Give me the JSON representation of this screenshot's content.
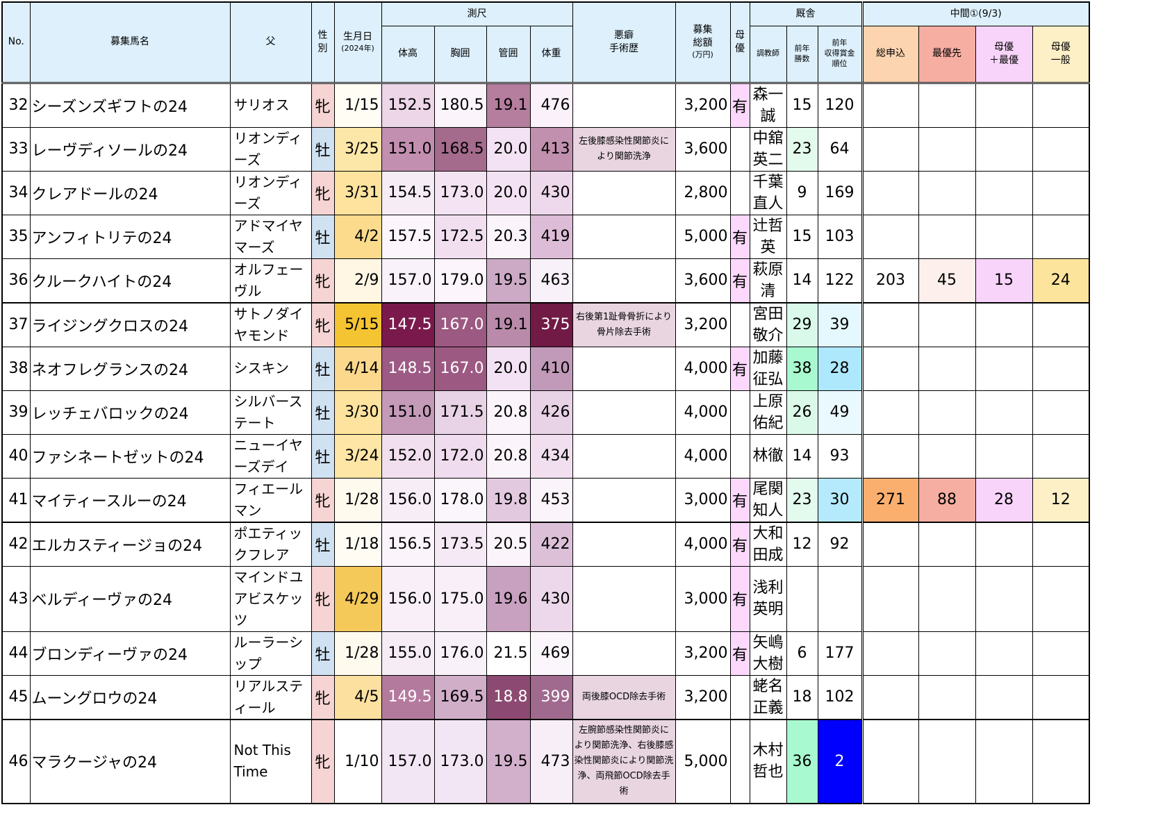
{
  "headers": {
    "no": "No.",
    "name": "募集馬名",
    "sire": "父",
    "sex": [
      "性",
      "別"
    ],
    "birth": "生月日",
    "birth_sub": "(2024年)",
    "measure_group": "測尺",
    "height": "体高",
    "chest": "胸囲",
    "cannon": "管囲",
    "weight": "体重",
    "vice": [
      "悪癖",
      "手術歴"
    ],
    "price": [
      "募集",
      "総額"
    ],
    "price_unit": "(万円)",
    "mother": [
      "母",
      "優"
    ],
    "stable_group": "厩舎",
    "trainer": "調教師",
    "wins": [
      "前年",
      "勝数"
    ],
    "rank": [
      "前年",
      "収得賞金",
      "順位"
    ],
    "interim_group": "中間①(9/3)",
    "total": "総申込",
    "priority": "最優先",
    "mother_priority": [
      "母優",
      "＋最優"
    ],
    "mother_general": [
      "母優",
      "一般"
    ]
  },
  "rows": [
    {
      "no": "32",
      "name": "シーズンズギフトの24",
      "sire": "サリオス",
      "sex": "牝",
      "birth": "1/15",
      "height": "152.5",
      "chest": "180.5",
      "cannon": "19.1",
      "weight": "476",
      "note": "",
      "price": "3,200",
      "mother": "有",
      "trainer": "森一誠",
      "wins": "15",
      "rank": "120",
      "total": "",
      "priority": "",
      "mother_priority": "",
      "mother_general": ""
    },
    {
      "no": "33",
      "name": "レーヴディソールの24",
      "sire": "リオンディーズ",
      "sex": "牡",
      "birth": "3/25",
      "height": "151.0",
      "chest": "168.5",
      "cannon": "20.0",
      "weight": "413",
      "note": "左後膝感染性関節炎により関節洗浄",
      "price": "3,600",
      "mother": "",
      "trainer": "中舘英二",
      "wins": "23",
      "rank": "64",
      "total": "",
      "priority": "",
      "mother_priority": "",
      "mother_general": ""
    },
    {
      "no": "34",
      "name": "クレアドールの24",
      "sire": "リオンディーズ",
      "sex": "牝",
      "birth": "3/31",
      "height": "154.5",
      "chest": "173.0",
      "cannon": "20.0",
      "weight": "430",
      "note": "",
      "price": "2,800",
      "mother": "",
      "trainer": "千葉直人",
      "wins": "9",
      "rank": "169",
      "total": "",
      "priority": "",
      "mother_priority": "",
      "mother_general": ""
    },
    {
      "no": "35",
      "name": "アンフィトリテの24",
      "sire": "アドマイヤマーズ",
      "sex": "牡",
      "birth": "4/2",
      "height": "157.5",
      "chest": "172.5",
      "cannon": "20.3",
      "weight": "419",
      "note": "",
      "price": "5,000",
      "mother": "有",
      "trainer": "辻哲英",
      "wins": "15",
      "rank": "103",
      "total": "",
      "priority": "",
      "mother_priority": "",
      "mother_general": ""
    },
    {
      "no": "36",
      "name": "クルークハイトの24",
      "sire": "オルフェーヴル",
      "sex": "牝",
      "birth": "2/9",
      "height": "157.0",
      "chest": "179.0",
      "cannon": "19.5",
      "weight": "463",
      "note": "",
      "price": "3,600",
      "mother": "有",
      "trainer": "萩原清",
      "wins": "14",
      "rank": "122",
      "total": "203",
      "priority": "45",
      "mother_priority": "15",
      "mother_general": "24"
    },
    {
      "no": "37",
      "name": "ライジングクロスの24",
      "sire": "サトノダイヤモンド",
      "sex": "牝",
      "birth": "5/15",
      "height": "147.5",
      "chest": "167.0",
      "cannon": "19.1",
      "weight": "375",
      "note": "右後第1趾骨骨折により骨片除去手術",
      "price": "3,200",
      "mother": "",
      "trainer": "宮田敬介",
      "wins": "29",
      "rank": "39",
      "total": "",
      "priority": "",
      "mother_priority": "",
      "mother_general": ""
    },
    {
      "no": "38",
      "name": "ネオフレグランスの24",
      "sire": "シスキン",
      "sex": "牡",
      "birth": "4/14",
      "height": "148.5",
      "chest": "167.0",
      "cannon": "20.0",
      "weight": "410",
      "note": "",
      "price": "4,000",
      "mother": "有",
      "trainer": "加藤征弘",
      "wins": "38",
      "rank": "28",
      "total": "",
      "priority": "",
      "mother_priority": "",
      "mother_general": ""
    },
    {
      "no": "39",
      "name": "レッチェバロックの24",
      "sire": "シルバーステート",
      "sex": "牡",
      "birth": "3/30",
      "height": "151.0",
      "chest": "171.5",
      "cannon": "20.8",
      "weight": "426",
      "note": "",
      "price": "4,000",
      "mother": "",
      "trainer": "上原佑紀",
      "wins": "26",
      "rank": "49",
      "total": "",
      "priority": "",
      "mother_priority": "",
      "mother_general": ""
    },
    {
      "no": "40",
      "name": "ファシネートゼットの24",
      "sire": "ニューイヤーズデイ",
      "sex": "牡",
      "birth": "3/24",
      "height": "152.0",
      "chest": "172.0",
      "cannon": "20.8",
      "weight": "434",
      "note": "",
      "price": "4,000",
      "mother": "",
      "trainer": "林徹",
      "wins": "14",
      "rank": "93",
      "total": "",
      "priority": "",
      "mother_priority": "",
      "mother_general": ""
    },
    {
      "no": "41",
      "name": "マイティースルーの24",
      "sire": "フィエールマン",
      "sex": "牝",
      "birth": "1/28",
      "height": "156.0",
      "chest": "178.0",
      "cannon": "19.8",
      "weight": "453",
      "note": "",
      "price": "3,000",
      "mother": "有",
      "trainer": "尾関知人",
      "wins": "23",
      "rank": "30",
      "total": "271",
      "priority": "88",
      "mother_priority": "28",
      "mother_general": "12"
    },
    {
      "no": "42",
      "name": "エルカスティージョの24",
      "sire": "ポエティックフレア",
      "sex": "牡",
      "birth": "1/18",
      "height": "156.5",
      "chest": "173.5",
      "cannon": "20.5",
      "weight": "422",
      "note": "",
      "price": "4,000",
      "mother": "有",
      "trainer": "大和田成",
      "wins": "12",
      "rank": "92",
      "total": "",
      "priority": "",
      "mother_priority": "",
      "mother_general": ""
    },
    {
      "no": "43",
      "name": "ベルディーヴァの24",
      "sire": "マインドユアビスケッツ",
      "sex": "牝",
      "birth": "4/29",
      "height": "156.0",
      "chest": "175.0",
      "cannon": "19.6",
      "weight": "430",
      "note": "",
      "price": "3,000",
      "mother": "有",
      "trainer": "浅利英明",
      "wins": "",
      "rank": "",
      "total": "",
      "priority": "",
      "mother_priority": "",
      "mother_general": ""
    },
    {
      "no": "44",
      "name": "ブロンディーヴァの24",
      "sire": "ルーラーシップ",
      "sex": "牡",
      "birth": "1/28",
      "height": "155.0",
      "chest": "176.0",
      "cannon": "21.5",
      "weight": "469",
      "note": "",
      "price": "3,200",
      "mother": "有",
      "trainer": "矢嶋大樹",
      "wins": "6",
      "rank": "177",
      "total": "",
      "priority": "",
      "mother_priority": "",
      "mother_general": ""
    },
    {
      "no": "45",
      "name": "ムーングロウの24",
      "sire": "リアルスティール",
      "sex": "牝",
      "birth": "4/5",
      "height": "149.5",
      "chest": "169.5",
      "cannon": "18.8",
      "weight": "399",
      "note": "両後膝OCD除去手術",
      "price": "3,200",
      "mother": "",
      "trainer": "蛯名正義",
      "wins": "18",
      "rank": "102",
      "total": "",
      "priority": "",
      "mother_priority": "",
      "mother_general": ""
    },
    {
      "no": "46",
      "name": "マラクージャの24",
      "sire": "Not This Time",
      "sex": "牝",
      "birth": "1/10",
      "height": "157.0",
      "chest": "173.0",
      "cannon": "19.5",
      "weight": "473",
      "note": "左腕節感染性関節炎により関節洗浄、右後膝感染性関節炎により関節洗浄、両飛節OCD除去手術",
      "price": "5,000",
      "mother": "",
      "trainer": "木村哲也",
      "wins": "36",
      "rank": "2",
      "total": "",
      "priority": "",
      "mother_priority": "",
      "mother_general": ""
    }
  ],
  "colors": {
    "header_bg": "#ddf0fc",
    "male": "#d0e2f2",
    "female": "#f6d4d4",
    "mother_yes": "#fcd8fc",
    "note_bg": "#e8d5e0",
    "interim_total": "#fcd4b0",
    "interim_priority": "#f6aea2",
    "interim_mother_priority": "#f8d4fa",
    "interim_mother_general": "#fdefc6"
  },
  "cell_colors": [
    {
      "birth": "#fffdf4",
      "height": "#ecd6e8",
      "chest": "#fbf4fb",
      "cannon": "#b57d9e",
      "weight": "#fbf1fa",
      "wins": "#ffffff",
      "rank": "#ffffff"
    },
    {
      "birth": "#fde7a8",
      "height": "#c28fb0",
      "chest": "#a46b8d",
      "cannon": "#f3e2f3",
      "weight": "#c090ae",
      "wins": "#e3fbec",
      "rank": "#ffffff"
    },
    {
      "birth": "#fde39d",
      "height": "#f6ecf6",
      "chest": "#f3e3f3",
      "cannon": "#f3e2f3",
      "weight": "#edd9eb",
      "wins": "#ffffff",
      "rank": "#ffffff"
    },
    {
      "birth": "#fcdc8c",
      "height": "#fcf6fc",
      "chest": "#f1dff0",
      "cannon": "#fbf5fb",
      "weight": "#dcbcd6",
      "wins": "#ffffff",
      "rank": "#ffffff"
    },
    {
      "birth": "#fff7e4",
      "height": "#faf2fa",
      "chest": "#fcf6fc",
      "cannon": "#ccaac6",
      "weight": "#f9f1f9",
      "wins": "#ffffff",
      "rank": "#ffffff"
    },
    {
      "birth": "#f4c432",
      "height": "#7a1a4c",
      "chest": "#9c5a82",
      "cannon": "#b98aaa",
      "weight": "#701a45",
      "wins": "#d9faea",
      "rank": "#e4f8fe"
    },
    {
      "birth": "#fcd88c",
      "height": "#9c5a84",
      "chest": "#9c5a82",
      "cannon": "#f3e2f3",
      "weight": "#c09ab8",
      "wins": "#a8f9cf",
      "rank": "#aee8fc"
    },
    {
      "birth": "#fde39d",
      "height": "#c49ab8",
      "chest": "#e8d2e6",
      "cannon": "#fbf5fb",
      "weight": "#e8d2e6",
      "wins": "#dbf9e9",
      "rank": "#eaf9fe"
    },
    {
      "birth": "#fde6a6",
      "height": "#f1dfef",
      "chest": "#efdcee",
      "cannon": "#fbf5fb",
      "weight": "#f1dff0",
      "wins": "#ffffff",
      "rank": "#ffffff"
    },
    {
      "birth": "#fffaee",
      "height": "#f7edf7",
      "chest": "#fbf6fb",
      "cannon": "#e3c9e0",
      "weight": "#fbf4fb",
      "wins": "#e2fbee",
      "rank": "#b4eafc"
    },
    {
      "birth": "#fffcf4",
      "height": "#fbf5fb",
      "chest": "#f5e9f5",
      "cannon": "#fbf5fb",
      "weight": "#dcc0d8",
      "wins": "#ffffff",
      "rank": "#ffffff"
    },
    {
      "birth": "#f5c85a",
      "height": "#f8eff8",
      "chest": "#f8eff8",
      "cannon": "#c7a1bf",
      "weight": "#ecd8ea",
      "wins": "#ffffff",
      "rank": "#ffffff"
    },
    {
      "birth": "#fffaee",
      "height": "#f6ecf6",
      "chest": "#f9f1f9",
      "cannon": "#ffffff",
      "weight": "#fbf6fb",
      "wins": "#ffffff",
      "rank": "#ffffff"
    },
    {
      "birth": "#fce0a0",
      "height": "#b47a9e",
      "chest": "#d0aec8",
      "cannon": "#8c4a72",
      "weight": "#a06a8e",
      "wins": "#ffffff",
      "rank": "#ffffff"
    },
    {
      "birth": "#ffffff",
      "height": "#f3e6f4",
      "chest": "#f3e6f4",
      "cannon": "#d2b0cc",
      "weight": "#f7eef7",
      "wins": "#a8f9cf",
      "rank": "#0000ff"
    }
  ],
  "white_text": [
    [],
    [],
    [],
    [],
    [],
    [
      "height",
      "chest",
      "weight"
    ],
    [
      "height",
      "chest"
    ],
    [],
    [],
    [],
    [],
    [],
    [],
    [
      "height",
      "weight",
      "cannon"
    ],
    [
      "rank"
    ]
  ]
}
